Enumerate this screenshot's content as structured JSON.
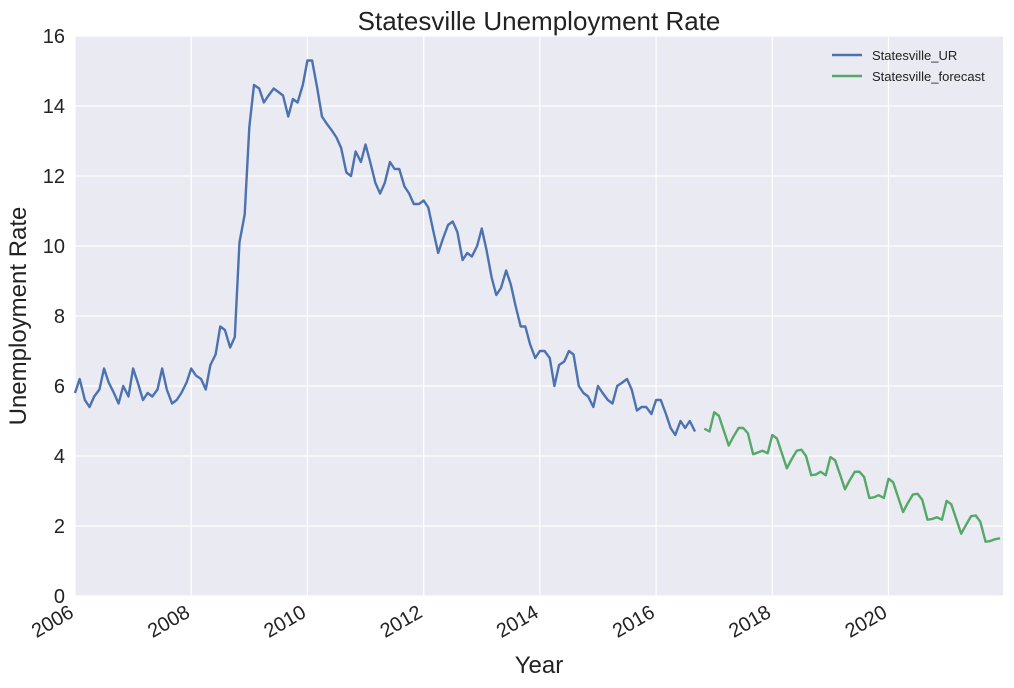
{
  "chart_data": {
    "type": "line",
    "title": "Statesville Unemployment Rate",
    "xlabel": "Year",
    "ylabel": "Unemployment Rate",
    "xlim": [
      2006.0,
      2021.97
    ],
    "ylim": [
      0,
      16
    ],
    "x_ticks": [
      2006,
      2008,
      2010,
      2012,
      2014,
      2016,
      2018,
      2020
    ],
    "x_tick_labels": [
      "2006",
      "2008",
      "2010",
      "2012",
      "2014",
      "2016",
      "2018",
      "2020"
    ],
    "y_ticks": [
      0,
      2,
      4,
      6,
      8,
      10,
      12,
      14,
      16
    ],
    "y_tick_labels": [
      "0",
      "2",
      "4",
      "6",
      "8",
      "10",
      "12",
      "14",
      "16"
    ],
    "grid": true,
    "legend_position": "top-right",
    "series": [
      {
        "name": "Statesville_UR",
        "color": "#4c72b0",
        "points": [
          [
            2006.0,
            5.8
          ],
          [
            2006.08,
            6.2
          ],
          [
            2006.17,
            5.6
          ],
          [
            2006.25,
            5.4
          ],
          [
            2006.33,
            5.7
          ],
          [
            2006.42,
            5.9
          ],
          [
            2006.5,
            6.5
          ],
          [
            2006.58,
            6.1
          ],
          [
            2006.67,
            5.8
          ],
          [
            2006.75,
            5.5
          ],
          [
            2006.83,
            6.0
          ],
          [
            2006.92,
            5.7
          ],
          [
            2007.0,
            6.5
          ],
          [
            2007.08,
            6.1
          ],
          [
            2007.17,
            5.6
          ],
          [
            2007.25,
            5.8
          ],
          [
            2007.33,
            5.7
          ],
          [
            2007.42,
            5.9
          ],
          [
            2007.5,
            6.5
          ],
          [
            2007.58,
            5.9
          ],
          [
            2007.67,
            5.5
          ],
          [
            2007.75,
            5.6
          ],
          [
            2007.83,
            5.8
          ],
          [
            2007.92,
            6.1
          ],
          [
            2008.0,
            6.5
          ],
          [
            2008.08,
            6.3
          ],
          [
            2008.17,
            6.2
          ],
          [
            2008.25,
            5.9
          ],
          [
            2008.33,
            6.6
          ],
          [
            2008.42,
            6.9
          ],
          [
            2008.5,
            7.7
          ],
          [
            2008.58,
            7.6
          ],
          [
            2008.67,
            7.1
          ],
          [
            2008.75,
            7.4
          ],
          [
            2008.83,
            10.1
          ],
          [
            2008.92,
            10.9
          ],
          [
            2009.0,
            13.4
          ],
          [
            2009.08,
            14.6
          ],
          [
            2009.17,
            14.5
          ],
          [
            2009.25,
            14.1
          ],
          [
            2009.33,
            14.3
          ],
          [
            2009.42,
            14.5
          ],
          [
            2009.5,
            14.4
          ],
          [
            2009.58,
            14.3
          ],
          [
            2009.67,
            13.7
          ],
          [
            2009.75,
            14.2
          ],
          [
            2009.83,
            14.1
          ],
          [
            2009.92,
            14.6
          ],
          [
            2010.0,
            15.3
          ],
          [
            2010.08,
            15.3
          ],
          [
            2010.17,
            14.5
          ],
          [
            2010.25,
            13.7
          ],
          [
            2010.33,
            13.5
          ],
          [
            2010.42,
            13.3
          ],
          [
            2010.5,
            13.1
          ],
          [
            2010.58,
            12.8
          ],
          [
            2010.67,
            12.1
          ],
          [
            2010.75,
            12.0
          ],
          [
            2010.83,
            12.7
          ],
          [
            2010.92,
            12.4
          ],
          [
            2011.0,
            12.9
          ],
          [
            2011.08,
            12.4
          ],
          [
            2011.17,
            11.8
          ],
          [
            2011.25,
            11.5
          ],
          [
            2011.33,
            11.8
          ],
          [
            2011.42,
            12.4
          ],
          [
            2011.5,
            12.2
          ],
          [
            2011.58,
            12.2
          ],
          [
            2011.67,
            11.7
          ],
          [
            2011.75,
            11.5
          ],
          [
            2011.83,
            11.2
          ],
          [
            2011.92,
            11.2
          ],
          [
            2012.0,
            11.3
          ],
          [
            2012.08,
            11.1
          ],
          [
            2012.17,
            10.4
          ],
          [
            2012.25,
            9.8
          ],
          [
            2012.33,
            10.2
          ],
          [
            2012.42,
            10.6
          ],
          [
            2012.5,
            10.7
          ],
          [
            2012.58,
            10.4
          ],
          [
            2012.67,
            9.6
          ],
          [
            2012.75,
            9.8
          ],
          [
            2012.83,
            9.7
          ],
          [
            2012.92,
            10.0
          ],
          [
            2013.0,
            10.5
          ],
          [
            2013.08,
            9.9
          ],
          [
            2013.17,
            9.1
          ],
          [
            2013.25,
            8.6
          ],
          [
            2013.33,
            8.8
          ],
          [
            2013.42,
            9.3
          ],
          [
            2013.5,
            8.9
          ],
          [
            2013.58,
            8.3
          ],
          [
            2013.67,
            7.7
          ],
          [
            2013.75,
            7.7
          ],
          [
            2013.83,
            7.2
          ],
          [
            2013.92,
            6.8
          ],
          [
            2014.0,
            7.0
          ],
          [
            2014.08,
            7.0
          ],
          [
            2014.17,
            6.8
          ],
          [
            2014.25,
            6.0
          ],
          [
            2014.33,
            6.6
          ],
          [
            2014.42,
            6.7
          ],
          [
            2014.5,
            7.0
          ],
          [
            2014.58,
            6.9
          ],
          [
            2014.67,
            6.0
          ],
          [
            2014.75,
            5.8
          ],
          [
            2014.83,
            5.7
          ],
          [
            2014.92,
            5.4
          ],
          [
            2015.0,
            6.0
          ],
          [
            2015.08,
            5.8
          ],
          [
            2015.17,
            5.6
          ],
          [
            2015.25,
            5.5
          ],
          [
            2015.33,
            6.0
          ],
          [
            2015.42,
            6.1
          ],
          [
            2015.5,
            6.2
          ],
          [
            2015.58,
            5.9
          ],
          [
            2015.67,
            5.3
          ],
          [
            2015.75,
            5.4
          ],
          [
            2015.83,
            5.4
          ],
          [
            2015.92,
            5.2
          ],
          [
            2016.0,
            5.6
          ],
          [
            2016.08,
            5.6
          ],
          [
            2016.17,
            5.2
          ],
          [
            2016.25,
            4.8
          ],
          [
            2016.33,
            4.6
          ],
          [
            2016.42,
            5.0
          ],
          [
            2016.5,
            4.8
          ],
          [
            2016.58,
            5.0
          ],
          [
            2016.67,
            4.7
          ]
        ]
      },
      {
        "name": "Statesville_forecast",
        "color": "#55a868",
        "points": [
          [
            2016.83,
            4.78
          ],
          [
            2016.92,
            4.7
          ],
          [
            2017.0,
            5.25
          ],
          [
            2017.08,
            5.15
          ],
          [
            2017.17,
            4.7
          ],
          [
            2017.25,
            4.3
          ],
          [
            2017.33,
            4.55
          ],
          [
            2017.42,
            4.8
          ],
          [
            2017.5,
            4.8
          ],
          [
            2017.58,
            4.65
          ],
          [
            2017.67,
            4.05
          ],
          [
            2017.75,
            4.1
          ],
          [
            2017.83,
            4.15
          ],
          [
            2017.92,
            4.08
          ],
          [
            2018.0,
            4.6
          ],
          [
            2018.08,
            4.5
          ],
          [
            2018.17,
            4.05
          ],
          [
            2018.25,
            3.65
          ],
          [
            2018.33,
            3.9
          ],
          [
            2018.42,
            4.15
          ],
          [
            2018.5,
            4.18
          ],
          [
            2018.58,
            4.0
          ],
          [
            2018.67,
            3.45
          ],
          [
            2018.75,
            3.47
          ],
          [
            2018.83,
            3.55
          ],
          [
            2018.92,
            3.45
          ],
          [
            2019.0,
            3.97
          ],
          [
            2019.08,
            3.88
          ],
          [
            2019.17,
            3.45
          ],
          [
            2019.25,
            3.05
          ],
          [
            2019.33,
            3.3
          ],
          [
            2019.42,
            3.55
          ],
          [
            2019.5,
            3.55
          ],
          [
            2019.58,
            3.4
          ],
          [
            2019.67,
            2.8
          ],
          [
            2019.75,
            2.82
          ],
          [
            2019.83,
            2.88
          ],
          [
            2019.92,
            2.8
          ],
          [
            2020.0,
            3.35
          ],
          [
            2020.08,
            3.25
          ],
          [
            2020.17,
            2.8
          ],
          [
            2020.25,
            2.4
          ],
          [
            2020.33,
            2.65
          ],
          [
            2020.42,
            2.9
          ],
          [
            2020.5,
            2.92
          ],
          [
            2020.58,
            2.75
          ],
          [
            2020.67,
            2.18
          ],
          [
            2020.75,
            2.2
          ],
          [
            2020.83,
            2.25
          ],
          [
            2020.92,
            2.18
          ],
          [
            2021.0,
            2.72
          ],
          [
            2021.08,
            2.62
          ],
          [
            2021.17,
            2.18
          ],
          [
            2021.25,
            1.78
          ],
          [
            2021.33,
            2.02
          ],
          [
            2021.42,
            2.28
          ],
          [
            2021.5,
            2.3
          ],
          [
            2021.58,
            2.12
          ],
          [
            2021.67,
            1.55
          ],
          [
            2021.75,
            1.57
          ],
          [
            2021.83,
            1.62
          ],
          [
            2021.92,
            1.65
          ]
        ]
      }
    ]
  }
}
